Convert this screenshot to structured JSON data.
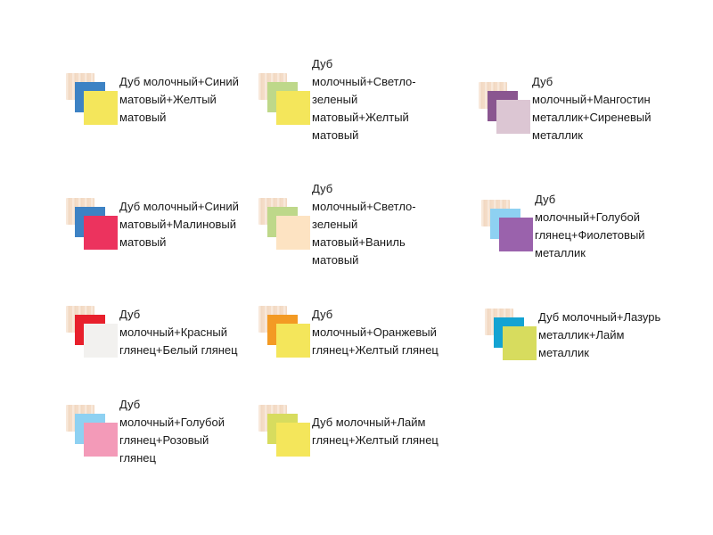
{
  "combinations": [
    {
      "label": "Дуб молочный+Синий матовый+Желтый матовый",
      "colors": [
        "#f4dcc7",
        "#3d82c4",
        "#f4e65b"
      ]
    },
    {
      "label": "Дуб молочный+Светло-зеленый матовый+Желтый матовый",
      "colors": [
        "#f4dcc7",
        "#bed88a",
        "#f4e65b"
      ]
    },
    {
      "label": "Дуб молочный+Мангостин металлик+Сиреневый металлик",
      "colors": [
        "#f4dcc7",
        "#8a5690",
        "#dcc6d3"
      ]
    },
    {
      "label": "Дуб молочный+Синий матовый+Малиновый матовый",
      "colors": [
        "#f4dcc7",
        "#3d82c4",
        "#ec335e"
      ]
    },
    {
      "label": "Дуб молочный+Светло-зеленый матовый+Ваниль матовый",
      "colors": [
        "#f4dcc7",
        "#bed88a",
        "#fde3c2"
      ]
    },
    {
      "label": "Дуб молочный+Голубой глянец+Фиолетовый металлик",
      "colors": [
        "#f4dcc7",
        "#8ed1f2",
        "#9a62ac"
      ]
    },
    {
      "label": "Дуб молочный+Красный глянец+Белый глянец",
      "colors": [
        "#f4dcc7",
        "#e8202c",
        "#f2f1ef"
      ]
    },
    {
      "label": "Дуб молочный+Оранжевый глянец+Желтый глянец",
      "colors": [
        "#f4dcc7",
        "#f39a24",
        "#f4e65b"
      ]
    },
    {
      "label": "Дуб молочный+Лазурь металлик+Лайм металлик",
      "colors": [
        "#f4dcc7",
        "#14a3d2",
        "#d7dc5e"
      ]
    },
    {
      "label": "Дуб молочный+Голубой глянец+Розовый глянец",
      "colors": [
        "#f4dcc7",
        "#8ed1f2",
        "#f39ab8"
      ]
    },
    {
      "label": "Дуб молочный+Лайм глянец+Желтый глянец",
      "colors": [
        "#f4dcc7",
        "#d7dc5e",
        "#f4e65b"
      ]
    }
  ]
}
